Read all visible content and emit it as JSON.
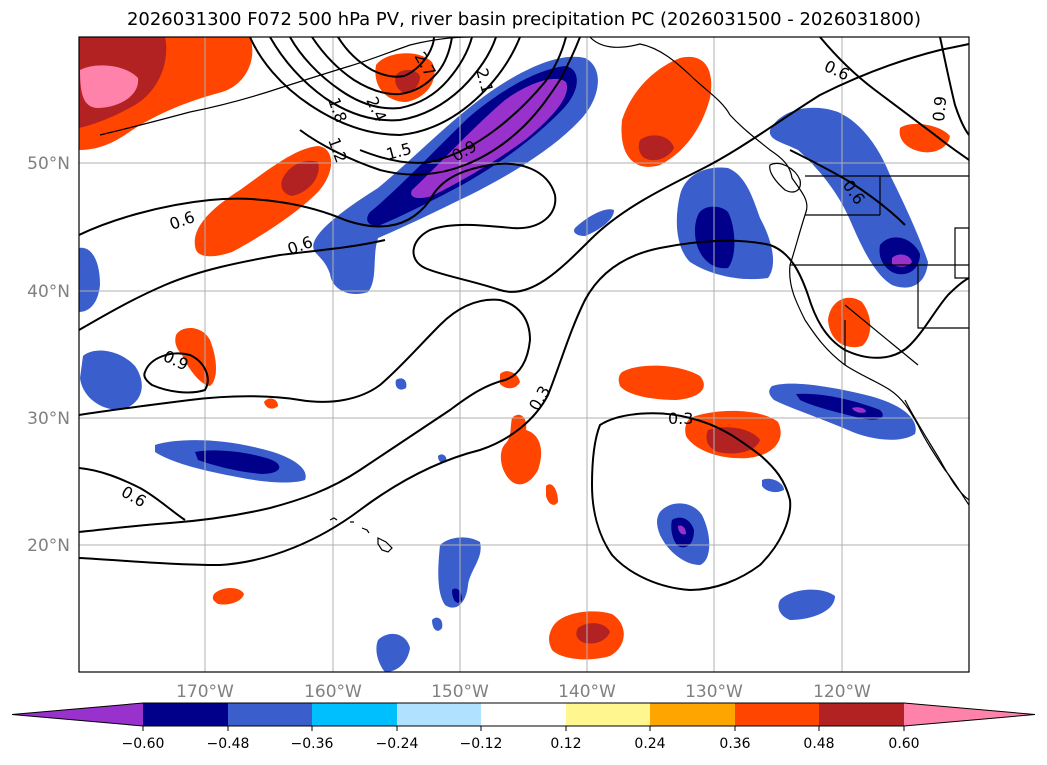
{
  "title": "2026031300 F072 500 hPa PV, river basin precipitation PC (2026031500 - 2026031800)",
  "colors": {
    "background": "#ffffff",
    "land_outline": "#000000",
    "grid": "#b0b0b0",
    "contour": "#000000",
    "axis_label": "#808080"
  },
  "map": {
    "lat_labels": [
      "50°N",
      "40°N",
      "30°N",
      "20°N"
    ],
    "lon_labels": [
      "170°W",
      "160°W",
      "150°W",
      "140°W",
      "130°W",
      "120°W"
    ],
    "pv_contour_labels": [
      "0.3",
      "0.3",
      "0.6",
      "0.6",
      "0.6",
      "0.6",
      "0.6",
      "0.9",
      "0.9",
      "0.9",
      "1.2",
      "1.5",
      "1.8",
      "2.1",
      "2.4",
      "2.7"
    ]
  },
  "colorbar": {
    "ticks": [
      "−0.60",
      "−0.48",
      "−0.36",
      "−0.24",
      "−0.12",
      "0.12",
      "0.24",
      "0.36",
      "0.48",
      "0.60"
    ],
    "colors": [
      "#9932cc",
      "#00008b",
      "#3a5fcd",
      "#00bfff",
      "#b0e2ff",
      "#ffffff",
      "#fff68f",
      "#ffa500",
      "#ff4500",
      "#b22222",
      "#ff82ab"
    ]
  }
}
